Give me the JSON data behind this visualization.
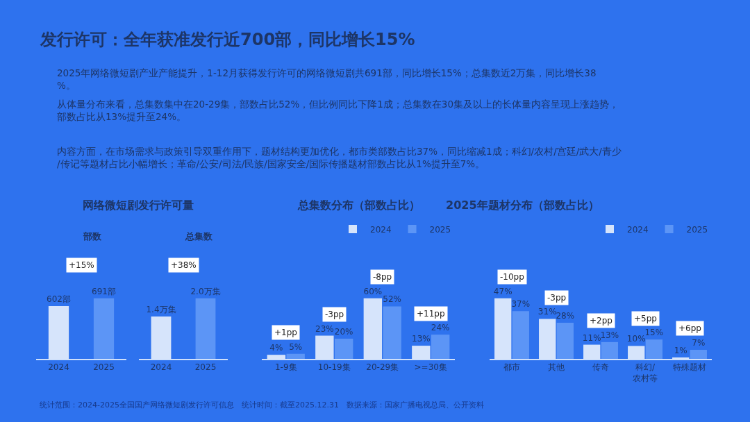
{
  "chart_data": [
    {
      "type": "other",
      "title": "发行许可：全年获准发行近700部，同比增长15%",
      "annotations": [
        "2025年网络微短剧产业产能提升，1-12月获得发行许可的网络微短剧共691部，同比增长15%；总集数近2万集，同比增长38%。",
        "从体量分布来看，总集数集中在20-29集，部数占比52%，但比例同比下降1成；总集数在30集及以上的长体量内容呈现上涨趋势，部数占比从13%提升至24%。",
        "内容方面，在市场需求与政策引导双重作用下，题材结构更加优化，都市类部数占比37%，同比缩减1成；科幻/农村/宫廷/武大/青少/传记等题材占比小幅增长；革命/公安/司法/民族/国家安全/国际传播题材部数占比从1%提升至7%。",
        "统计范围：2024-2025全国国产网络微短剧发行许可信息　统计时间：截至2025.12.31　数据来源：国家广播电视总局、公开资料"
      ]
    },
    {
      "type": "bar",
      "title": "网络微短剧发行许可量",
      "subtitle": "部数",
      "categories": [
        "2024",
        "2025"
      ],
      "series": [
        {
          "colors": [
            "#d6e4fb",
            "#5c95f6"
          ],
          "values": [
            602,
            691
          ],
          "value_labels": [
            "602部",
            "691部"
          ]
        }
      ],
      "annotations": [
        "+15%"
      ]
    },
    {
      "type": "bar",
      "subtitle": "总集数",
      "categories": [
        "2024",
        "2025"
      ],
      "series": [
        {
          "colors": [
            "#d6e4fb",
            "#5c95f6"
          ],
          "values": [
            1.4,
            2.0
          ],
          "value_labels": [
            "1.4万集",
            "2.0万集"
          ]
        }
      ],
      "annotations": [
        "+38%"
      ]
    },
    {
      "type": "bar",
      "title": "总集数分布（部数占比）",
      "categories": [
        "1-9集",
        "10-19集",
        "20-29集",
        ">=30集"
      ],
      "legend": "top right",
      "series": [
        {
          "name": "2024",
          "color": "#d6e4fb",
          "values": [
            4,
            23,
            60,
            13
          ],
          "value_labels": [
            "4%",
            "23%",
            "60%",
            "13%"
          ]
        },
        {
          "name": "2025",
          "color": "#5c95f6",
          "values": [
            5,
            20,
            52,
            24
          ],
          "value_labels": [
            "5%",
            "20%",
            "52%",
            "24%"
          ]
        }
      ],
      "annotations": [
        "+1pp",
        "-3pp",
        "-8pp",
        "+11pp"
      ]
    },
    {
      "type": "bar",
      "title": "2025年题材分布（部数占比）",
      "categories": [
        "都市",
        "其他",
        "传奇",
        "科幻/\n农村等",
        "特殊题材"
      ],
      "legend": "top right",
      "series": [
        {
          "name": "2024",
          "color": "#d6e4fb",
          "values": [
            47,
            31,
            11,
            10,
            1
          ],
          "value_labels": [
            "47%",
            "31%",
            "11%",
            "10%",
            "1%"
          ]
        },
        {
          "name": "2025",
          "color": "#5c95f6",
          "values": [
            37,
            28,
            13,
            15,
            7
          ],
          "value_labels": [
            "37%",
            "28%",
            "13%",
            "15%",
            "7%"
          ]
        }
      ],
      "annotations": [
        "-10pp",
        "-3pp",
        "+2pp",
        "+5pp",
        "+6pp"
      ]
    }
  ]
}
